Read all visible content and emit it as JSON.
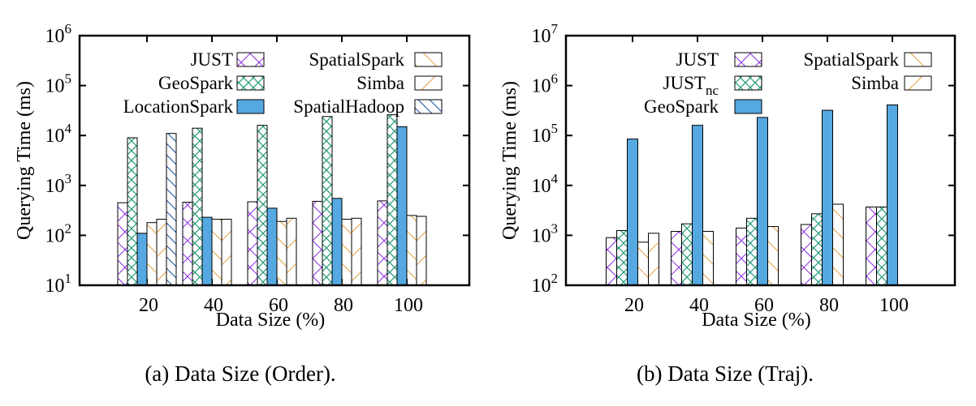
{
  "chart_data": [
    {
      "type": "bar",
      "caption": "(a)  Data Size (Order).",
      "xlabel": "Data Size (%)",
      "ylabel": "Querying Time (ms)",
      "yscale": "log",
      "ylim": [
        10,
        1000000
      ],
      "yticks": [
        {
          "value": 10,
          "base": "10",
          "exp": "1"
        },
        {
          "value": 100,
          "base": "10",
          "exp": "2"
        },
        {
          "value": 1000,
          "base": "10",
          "exp": "3"
        },
        {
          "value": 10000,
          "base": "10",
          "exp": "4"
        },
        {
          "value": 100000,
          "base": "10",
          "exp": "5"
        },
        {
          "value": 1000000,
          "base": "10",
          "exp": "6"
        }
      ],
      "categories": [
        "20",
        "40",
        "60",
        "80",
        "100"
      ],
      "legend_columns": 2,
      "series": [
        {
          "name": "JUST",
          "name_sub": "",
          "pattern": "cross",
          "color": "#8a2be2",
          "values": [
            450,
            460,
            470,
            480,
            490
          ]
        },
        {
          "name": "GeoSpark",
          "name_sub": "",
          "pattern": "crosshatch",
          "color": "#229977",
          "values": [
            9000,
            14000,
            16000,
            24000,
            26000
          ]
        },
        {
          "name": "LocationSpark",
          "name_sub": "",
          "pattern": "solid",
          "color": "#56a8e0",
          "values": [
            110,
            230,
            350,
            550,
            15000
          ]
        },
        {
          "name": "SpatialSpark",
          "name_sub": "",
          "pattern": "backslash",
          "color": "#e0a040",
          "values": [
            180,
            210,
            190,
            210,
            250
          ]
        },
        {
          "name": "Simba",
          "name_sub": "",
          "pattern": "slash",
          "color": "#e0a040",
          "values": [
            210,
            210,
            220,
            220,
            240
          ]
        },
        {
          "name": "SpatialHadoop",
          "name_sub": "",
          "pattern": "backslash",
          "color": "#3366aa",
          "values": [
            11000,
            null,
            null,
            null,
            null
          ]
        }
      ]
    },
    {
      "type": "bar",
      "caption": "(b)  Data Size (Traj).",
      "xlabel": "Data Size (%)",
      "ylabel": "Querying Time (ms)",
      "yscale": "log",
      "ylim": [
        100,
        10000000
      ],
      "yticks": [
        {
          "value": 100,
          "base": "10",
          "exp": "2"
        },
        {
          "value": 1000,
          "base": "10",
          "exp": "3"
        },
        {
          "value": 10000,
          "base": "10",
          "exp": "4"
        },
        {
          "value": 100000,
          "base": "10",
          "exp": "5"
        },
        {
          "value": 1000000,
          "base": "10",
          "exp": "6"
        },
        {
          "value": 10000000,
          "base": "10",
          "exp": "7"
        }
      ],
      "categories": [
        "20",
        "40",
        "60",
        "80",
        "100"
      ],
      "legend_columns": 2,
      "series": [
        {
          "name": "JUST",
          "name_sub": "",
          "pattern": "cross",
          "color": "#8a2be2",
          "values": [
            900,
            1200,
            1400,
            1650,
            3700
          ]
        },
        {
          "name": "JUST",
          "name_sub": "nc",
          "pattern": "crosshatch",
          "color": "#229977",
          "values": [
            1250,
            1700,
            2200,
            2700,
            3700
          ]
        },
        {
          "name": "GeoSpark",
          "name_sub": "",
          "pattern": "solid",
          "color": "#56a8e0",
          "values": [
            85000,
            160000,
            230000,
            320000,
            410000
          ]
        },
        {
          "name": "SpatialSpark",
          "name_sub": "",
          "pattern": "backslash",
          "color": "#e0a040",
          "values": [
            730,
            1200,
            1500,
            4200,
            null
          ]
        },
        {
          "name": "Simba",
          "name_sub": "",
          "pattern": "slash",
          "color": "#e0a040",
          "values": [
            1100,
            null,
            null,
            null,
            null
          ]
        }
      ]
    }
  ]
}
